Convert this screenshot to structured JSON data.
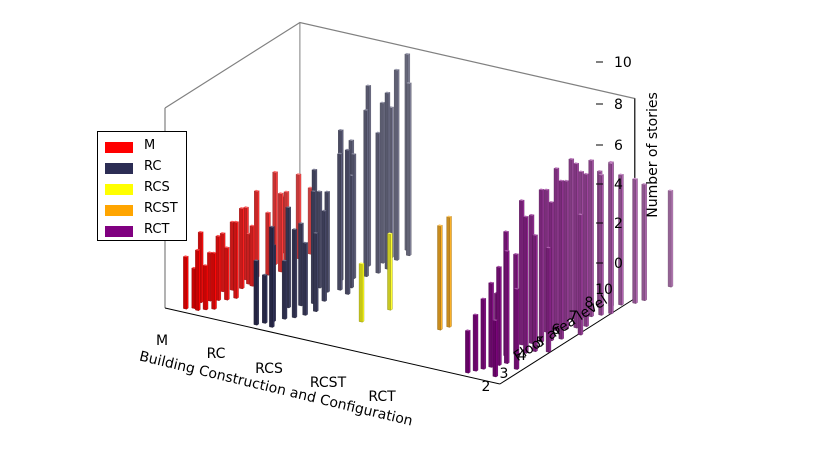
{
  "chart_data": {
    "type": "bar3d",
    "xlabel": "Building Construction and Configuration",
    "ylabel": "Floor area level",
    "zlabel": "Number of stories",
    "x_categories": [
      "M",
      "RC",
      "RCS",
      "RCST",
      "RCT"
    ],
    "y_ticks": [
      "2",
      "3",
      "4",
      "5",
      "6",
      "7",
      "8",
      "10"
    ],
    "z_ticks": [
      "0",
      "2",
      "4",
      "6",
      "8",
      "10"
    ],
    "zlim": [
      0,
      10
    ],
    "legend": {
      "position": "left",
      "entries": [
        "M",
        "RC",
        "RCS",
        "RCST",
        "RCT"
      ]
    },
    "series": [
      {
        "name": "M",
        "color": "#ff0000",
        "bars": [
          [
            0.0,
            1.8,
            2.6
          ],
          [
            0.08,
            2.0,
            2.0
          ],
          [
            0.15,
            1.9,
            3.0
          ],
          [
            0.22,
            2.1,
            2.2
          ],
          [
            0.3,
            2.3,
            2.8
          ],
          [
            0.05,
            2.6,
            3.5
          ],
          [
            0.12,
            2.9,
            2.4
          ],
          [
            0.2,
            3.1,
            3.2
          ],
          [
            0.28,
            3.3,
            2.6
          ],
          [
            0.35,
            3.6,
            3.8
          ],
          [
            0.1,
            3.9,
            2.9
          ],
          [
            0.18,
            4.2,
            3.4
          ],
          [
            0.25,
            4.5,
            4.0
          ],
          [
            0.32,
            4.9,
            3.0
          ],
          [
            0.15,
            5.3,
            3.6
          ],
          [
            0.22,
            5.7,
            4.3
          ],
          [
            0.3,
            6.1,
            3.1
          ],
          [
            0.38,
            6.6,
            3.9
          ],
          [
            0.2,
            7.1,
            4.6
          ],
          [
            0.28,
            7.5,
            3.5
          ],
          [
            0.35,
            8.0,
            4.2
          ],
          [
            0.4,
            8.6,
            3.3
          ],
          [
            0.1,
            8.2,
            2.8
          ],
          [
            0.25,
            5.0,
            2.5
          ]
        ]
      },
      {
        "name": "RC",
        "color": "#2c2d54",
        "bars": [
          [
            1.0,
            1.8,
            3.2
          ],
          [
            1.06,
            2.1,
            2.4
          ],
          [
            1.12,
            2.4,
            3.8
          ],
          [
            1.2,
            2.8,
            2.9
          ],
          [
            1.28,
            3.1,
            4.4
          ],
          [
            1.35,
            3.5,
            3.6
          ],
          [
            1.05,
            3.8,
            5.0
          ],
          [
            1.15,
            4.2,
            4.1
          ],
          [
            1.25,
            4.6,
            5.6
          ],
          [
            1.32,
            5.0,
            4.5
          ],
          [
            1.1,
            5.4,
            6.2
          ],
          [
            1.2,
            5.8,
            5.0
          ],
          [
            1.3,
            6.2,
            6.8
          ],
          [
            1.38,
            6.6,
            5.6
          ],
          [
            1.15,
            7.0,
            7.5
          ],
          [
            1.25,
            7.4,
            6.2
          ],
          [
            1.35,
            7.8,
            8.3
          ],
          [
            1.42,
            8.3,
            7.0
          ],
          [
            1.2,
            8.7,
            9.0
          ],
          [
            1.3,
            9.2,
            8.0
          ],
          [
            1.4,
            9.7,
            9.5
          ],
          [
            1.45,
            10.3,
            8.6
          ],
          [
            1.35,
            10.7,
            9.8
          ],
          [
            1.1,
            8.0,
            6.5
          ],
          [
            1.05,
            6.0,
            4.8
          ],
          [
            1.4,
            4.0,
            3.9
          ],
          [
            1.2,
            1.9,
            5.0
          ],
          [
            1.45,
            6.0,
            7.2
          ],
          [
            1.3,
            9.8,
            7.5
          ],
          [
            1.45,
            8.8,
            8.8
          ]
        ]
      },
      {
        "name": "RCS",
        "color": "#ffff00",
        "bars": [
          [
            2.05,
            4.0,
            2.9
          ],
          [
            2.15,
            5.5,
            3.8
          ]
        ]
      },
      {
        "name": "RCST",
        "color": "#ffa500",
        "bars": [
          [
            3.0,
            4.8,
            5.2
          ],
          [
            3.05,
            5.2,
            5.5
          ]
        ]
      },
      {
        "name": "RCT",
        "color": "#800080",
        "bars": [
          [
            4.0,
            1.8,
            2.1
          ],
          [
            4.05,
            2.1,
            2.8
          ],
          [
            4.1,
            2.4,
            3.5
          ],
          [
            4.15,
            2.7,
            4.2
          ],
          [
            4.2,
            3.0,
            4.9
          ],
          [
            4.25,
            3.3,
            5.6
          ],
          [
            4.05,
            3.6,
            3.2
          ],
          [
            4.12,
            3.9,
            6.2
          ],
          [
            4.2,
            4.2,
            5.0
          ],
          [
            4.28,
            4.5,
            6.8
          ],
          [
            4.35,
            4.8,
            5.8
          ],
          [
            4.1,
            5.1,
            7.2
          ],
          [
            4.18,
            5.4,
            6.4
          ],
          [
            4.26,
            5.7,
            7.6
          ],
          [
            4.34,
            6.0,
            6.9
          ],
          [
            4.42,
            6.3,
            7.9
          ],
          [
            4.15,
            6.6,
            7.1
          ],
          [
            4.23,
            6.9,
            8.1
          ],
          [
            4.31,
            7.2,
            7.4
          ],
          [
            4.39,
            7.5,
            8.2
          ],
          [
            4.47,
            7.8,
            7.6
          ],
          [
            4.2,
            8.1,
            8.0
          ],
          [
            4.28,
            8.4,
            7.3
          ],
          [
            4.36,
            8.7,
            7.8
          ],
          [
            4.44,
            9.0,
            7.0
          ],
          [
            4.52,
            9.3,
            7.5
          ],
          [
            4.3,
            9.6,
            6.8
          ],
          [
            4.4,
            9.9,
            7.2
          ],
          [
            4.48,
            10.2,
            6.5
          ],
          [
            4.35,
            2.0,
            2.8
          ],
          [
            4.45,
            3.0,
            4.0
          ],
          [
            4.5,
            5.0,
            5.2
          ],
          [
            4.55,
            7.0,
            6.0
          ],
          [
            4.6,
            10.6,
            6.2
          ],
          [
            4.65,
            11.0,
            5.8
          ],
          [
            4.7,
            12.6,
            4.8
          ]
        ]
      }
    ]
  }
}
